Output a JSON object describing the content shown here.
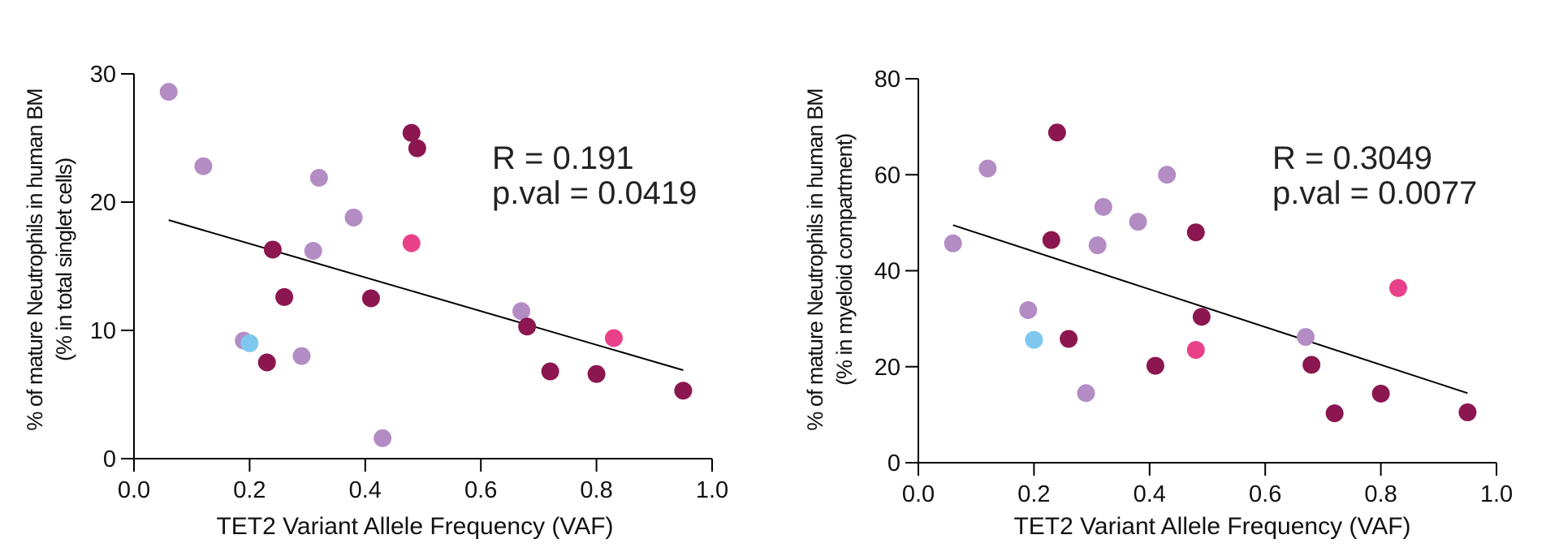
{
  "colors": {
    "light_purple": "#b48cc4",
    "dark_magenta": "#8b1650",
    "pink": "#e8418a",
    "light_blue": "#7ec8f0"
  },
  "chart_data": [
    {
      "type": "scatter",
      "xlabel": "TET2 Variant Allele Frequency (VAF)",
      "ylabel_line1": "% of mature Neutrophils in human BM",
      "ylabel_line2": "(% in total singlet cells)",
      "xlim": [
        0,
        1.0
      ],
      "ylim": [
        0,
        30
      ],
      "xticks": [
        "0.0",
        "0.2",
        "0.4",
        "0.6",
        "0.8",
        "1.0"
      ],
      "yticks": [
        "0",
        "10",
        "20",
        "30"
      ],
      "grid": false,
      "stat_r": "R = 0.191",
      "stat_p": "p.val = 0.0419",
      "fit": {
        "x": [
          0.06,
          0.95
        ],
        "y": [
          18.6,
          6.9
        ]
      },
      "points": [
        {
          "x": 0.06,
          "y": 28.6,
          "c": "light_purple"
        },
        {
          "x": 0.12,
          "y": 22.8,
          "c": "light_purple"
        },
        {
          "x": 0.32,
          "y": 21.9,
          "c": "light_purple"
        },
        {
          "x": 0.38,
          "y": 18.8,
          "c": "light_purple"
        },
        {
          "x": 0.31,
          "y": 16.2,
          "c": "light_purple"
        },
        {
          "x": 0.19,
          "y": 9.2,
          "c": "light_purple"
        },
        {
          "x": 0.29,
          "y": 8.0,
          "c": "light_purple"
        },
        {
          "x": 0.43,
          "y": 1.6,
          "c": "light_purple"
        },
        {
          "x": 0.67,
          "y": 11.5,
          "c": "light_purple"
        },
        {
          "x": 0.2,
          "y": 9.0,
          "c": "light_blue"
        },
        {
          "x": 0.48,
          "y": 25.4,
          "c": "dark_magenta"
        },
        {
          "x": 0.49,
          "y": 24.2,
          "c": "dark_magenta"
        },
        {
          "x": 0.24,
          "y": 16.3,
          "c": "dark_magenta"
        },
        {
          "x": 0.26,
          "y": 12.6,
          "c": "dark_magenta"
        },
        {
          "x": 0.41,
          "y": 12.5,
          "c": "dark_magenta"
        },
        {
          "x": 0.23,
          "y": 7.5,
          "c": "dark_magenta"
        },
        {
          "x": 0.68,
          "y": 10.3,
          "c": "dark_magenta"
        },
        {
          "x": 0.72,
          "y": 6.8,
          "c": "dark_magenta"
        },
        {
          "x": 0.8,
          "y": 6.6,
          "c": "dark_magenta"
        },
        {
          "x": 0.95,
          "y": 5.3,
          "c": "dark_magenta"
        },
        {
          "x": 0.48,
          "y": 16.8,
          "c": "pink"
        },
        {
          "x": 0.83,
          "y": 9.4,
          "c": "pink"
        }
      ]
    },
    {
      "type": "scatter",
      "xlabel": "TET2 Variant Allele Frequency (VAF)",
      "ylabel_line1": "% of mature Neutrophils in human BM",
      "ylabel_line2": "(% in myeloid compartment)",
      "xlim": [
        0,
        1.0
      ],
      "ylim": [
        0,
        80
      ],
      "xticks": [
        "0.0",
        "0.2",
        "0.4",
        "0.6",
        "0.8",
        "1.0"
      ],
      "yticks": [
        "0",
        "20",
        "40",
        "60",
        "80"
      ],
      "grid": false,
      "stat_r": "R = 0.3049",
      "stat_p": "p.val = 0.0077",
      "fit": {
        "x": [
          0.06,
          0.95
        ],
        "y": [
          49.5,
          14.5
        ]
      },
      "points": [
        {
          "x": 0.06,
          "y": 45.7,
          "c": "light_purple"
        },
        {
          "x": 0.12,
          "y": 61.3,
          "c": "light_purple"
        },
        {
          "x": 0.32,
          "y": 53.3,
          "c": "light_purple"
        },
        {
          "x": 0.31,
          "y": 45.3,
          "c": "light_purple"
        },
        {
          "x": 0.38,
          "y": 50.2,
          "c": "light_purple"
        },
        {
          "x": 0.43,
          "y": 60.0,
          "c": "light_purple"
        },
        {
          "x": 0.19,
          "y": 31.8,
          "c": "light_purple"
        },
        {
          "x": 0.29,
          "y": 14.5,
          "c": "light_purple"
        },
        {
          "x": 0.67,
          "y": 26.2,
          "c": "light_purple"
        },
        {
          "x": 0.2,
          "y": 25.6,
          "c": "light_blue"
        },
        {
          "x": 0.24,
          "y": 68.8,
          "c": "dark_magenta"
        },
        {
          "x": 0.23,
          "y": 46.4,
          "c": "dark_magenta"
        },
        {
          "x": 0.48,
          "y": 48.0,
          "c": "dark_magenta"
        },
        {
          "x": 0.26,
          "y": 25.8,
          "c": "dark_magenta"
        },
        {
          "x": 0.49,
          "y": 30.4,
          "c": "dark_magenta"
        },
        {
          "x": 0.41,
          "y": 20.2,
          "c": "dark_magenta"
        },
        {
          "x": 0.68,
          "y": 20.4,
          "c": "dark_magenta"
        },
        {
          "x": 0.72,
          "y": 10.3,
          "c": "dark_magenta"
        },
        {
          "x": 0.8,
          "y": 14.4,
          "c": "dark_magenta"
        },
        {
          "x": 0.95,
          "y": 10.5,
          "c": "dark_magenta"
        },
        {
          "x": 0.48,
          "y": 23.5,
          "c": "pink"
        },
        {
          "x": 0.83,
          "y": 36.4,
          "c": "pink"
        }
      ]
    }
  ]
}
